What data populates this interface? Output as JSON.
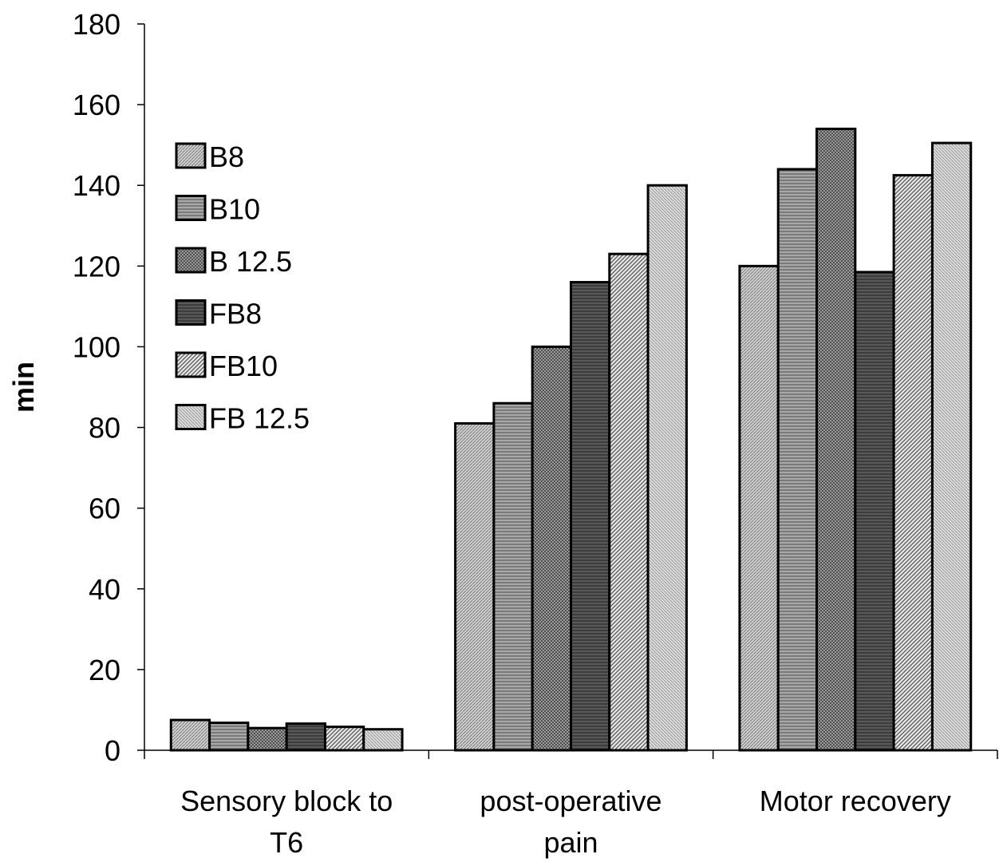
{
  "chart_data": {
    "type": "bar",
    "ylabel": "min",
    "xlabel": "",
    "ylim": [
      0,
      180
    ],
    "yticks": [
      0,
      20,
      40,
      60,
      80,
      100,
      120,
      140,
      160,
      180
    ],
    "categories": [
      [
        "Sensory block to",
        "T6"
      ],
      [
        "post-operative",
        "pain"
      ],
      [
        "Motor recovery"
      ]
    ],
    "series": [
      {
        "name": "B8",
        "values": [
          7.5,
          81,
          120
        ],
        "pattern": "pat-b8"
      },
      {
        "name": "B10",
        "values": [
          6.8,
          86,
          144
        ],
        "pattern": "pat-b10"
      },
      {
        "name": "B 12.5",
        "values": [
          5.5,
          100,
          154
        ],
        "pattern": "pat-b125"
      },
      {
        "name": "FB8",
        "values": [
          6.6,
          116,
          118.5
        ],
        "pattern": "pat-fb8"
      },
      {
        "name": "FB10",
        "values": [
          5.8,
          123,
          142.5
        ],
        "pattern": "pat-fb10"
      },
      {
        "name": "FB 12.5",
        "values": [
          5.2,
          140,
          150.5
        ],
        "pattern": "pat-fb125"
      }
    ],
    "grid": false,
    "legend_position": "top-left"
  }
}
